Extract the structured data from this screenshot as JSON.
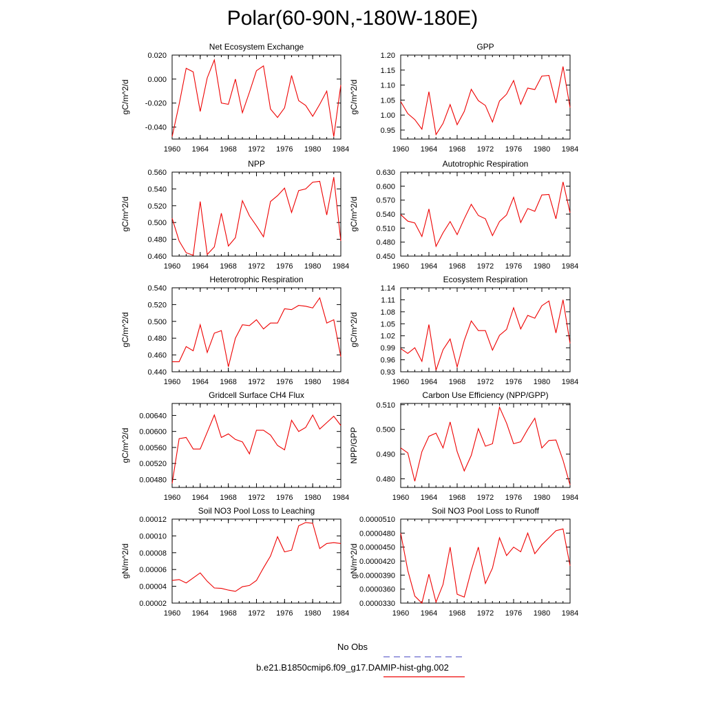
{
  "title": "Polar(60-90N,-180W-180E)",
  "legend": {
    "obs_label": "No Obs",
    "obs_color": "#6666cc",
    "model_label": "b.e21.B1850cmip6.f09_g17.DAMIP-hist-ghg.002",
    "model_color": "#ee0000"
  },
  "chart_data": [
    {
      "type": "line",
      "title": "Net Ecosystem Exchange",
      "ylabel": "gC/m^2/d",
      "xlim": [
        1960,
        1984
      ],
      "x_ticks": [
        "1960",
        "1964",
        "1968",
        "1972",
        "1976",
        "1980",
        "1984"
      ],
      "ylim": [
        -0.05,
        0.02
      ],
      "y_ticks": [
        "-0.040",
        "-0.020",
        "0.000",
        "0.020"
      ],
      "series": [
        {
          "color": "#ee0000",
          "x": [
            1960,
            1961,
            1962,
            1963,
            1964,
            1965,
            1966,
            1967,
            1968,
            1969,
            1970,
            1971,
            1972,
            1973,
            1974,
            1975,
            1976,
            1977,
            1978,
            1979,
            1980,
            1981,
            1982,
            1983,
            1984
          ],
          "values": [
            -0.048,
            -0.021,
            0.009,
            0.006,
            -0.027,
            0.001,
            0.016,
            -0.02,
            -0.021,
            0.0,
            -0.028,
            -0.011,
            0.007,
            0.011,
            -0.025,
            -0.032,
            -0.024,
            0.003,
            -0.018,
            -0.022,
            -0.031,
            -0.021,
            -0.01,
            -0.048,
            -0.005
          ]
        }
      ]
    },
    {
      "type": "line",
      "title": "GPP",
      "ylabel": "gC/m^2/d",
      "xlim": [
        1960,
        1984
      ],
      "x_ticks": [
        "1960",
        "1964",
        "1968",
        "1972",
        "1976",
        "1980",
        "1984"
      ],
      "ylim": [
        0.92,
        1.2
      ],
      "y_ticks": [
        "0.95",
        "1.00",
        "1.05",
        "1.10",
        "1.15",
        "1.20"
      ],
      "series": [
        {
          "color": "#ee0000",
          "x": [
            1960,
            1961,
            1962,
            1963,
            1964,
            1965,
            1966,
            1967,
            1968,
            1969,
            1970,
            1971,
            1972,
            1973,
            1974,
            1975,
            1976,
            1977,
            1978,
            1979,
            1980,
            1981,
            1982,
            1983,
            1984
          ],
          "values": [
            1.045,
            1.005,
            0.985,
            0.953,
            1.078,
            0.935,
            0.972,
            1.035,
            0.968,
            1.012,
            1.086,
            1.048,
            1.032,
            0.977,
            1.047,
            1.07,
            1.115,
            1.036,
            1.09,
            1.085,
            1.13,
            1.132,
            1.04,
            1.162,
            1.025
          ]
        }
      ]
    },
    {
      "type": "line",
      "title": "NPP",
      "ylabel": "gC/m^2/d",
      "xlim": [
        1960,
        1984
      ],
      "x_ticks": [
        "1960",
        "1964",
        "1968",
        "1972",
        "1976",
        "1980",
        "1984"
      ],
      "ylim": [
        0.46,
        0.56
      ],
      "y_ticks": [
        "0.460",
        "0.480",
        "0.500",
        "0.520",
        "0.540",
        "0.560"
      ],
      "series": [
        {
          "color": "#ee0000",
          "x": [
            1960,
            1961,
            1962,
            1963,
            1964,
            1965,
            1966,
            1967,
            1968,
            1969,
            1970,
            1971,
            1972,
            1973,
            1974,
            1975,
            1976,
            1977,
            1978,
            1979,
            1980,
            1981,
            1982,
            1983,
            1984
          ],
          "values": [
            0.505,
            0.478,
            0.464,
            0.461,
            0.525,
            0.462,
            0.471,
            0.511,
            0.472,
            0.482,
            0.526,
            0.508,
            0.496,
            0.483,
            0.525,
            0.532,
            0.541,
            0.512,
            0.538,
            0.54,
            0.548,
            0.549,
            0.509,
            0.554,
            0.478
          ]
        }
      ]
    },
    {
      "type": "line",
      "title": "Autotrophic Respiration",
      "ylabel": "gC/m^2/d",
      "xlim": [
        1960,
        1984
      ],
      "x_ticks": [
        "1960",
        "1964",
        "1968",
        "1972",
        "1976",
        "1980",
        "1984"
      ],
      "ylim": [
        0.45,
        0.63
      ],
      "y_ticks": [
        "0.450",
        "0.480",
        "0.510",
        "0.540",
        "0.570",
        "0.600",
        "0.630"
      ],
      "series": [
        {
          "color": "#ee0000",
          "x": [
            1960,
            1961,
            1962,
            1963,
            1964,
            1965,
            1966,
            1967,
            1968,
            1969,
            1970,
            1971,
            1972,
            1973,
            1974,
            1975,
            1976,
            1977,
            1978,
            1979,
            1980,
            1981,
            1982,
            1983,
            1984
          ],
          "values": [
            0.539,
            0.525,
            0.521,
            0.492,
            0.551,
            0.471,
            0.5,
            0.524,
            0.496,
            0.53,
            0.561,
            0.537,
            0.53,
            0.494,
            0.524,
            0.538,
            0.576,
            0.522,
            0.552,
            0.546,
            0.581,
            0.582,
            0.53,
            0.609,
            0.543
          ]
        }
      ]
    },
    {
      "type": "line",
      "title": "Heterotrophic Respiration",
      "ylabel": "gC/m^2/d",
      "xlim": [
        1960,
        1984
      ],
      "x_ticks": [
        "1960",
        "1964",
        "1968",
        "1972",
        "1976",
        "1980",
        "1984"
      ],
      "ylim": [
        0.44,
        0.54
      ],
      "y_ticks": [
        "0.440",
        "0.460",
        "0.480",
        "0.500",
        "0.520",
        "0.540"
      ],
      "series": [
        {
          "color": "#ee0000",
          "x": [
            1960,
            1961,
            1962,
            1963,
            1964,
            1965,
            1966,
            1967,
            1968,
            1969,
            1970,
            1971,
            1972,
            1973,
            1974,
            1975,
            1976,
            1977,
            1978,
            1979,
            1980,
            1981,
            1982,
            1983,
            1984
          ],
          "values": [
            0.452,
            0.452,
            0.47,
            0.465,
            0.496,
            0.463,
            0.486,
            0.489,
            0.446,
            0.48,
            0.496,
            0.495,
            0.502,
            0.491,
            0.498,
            0.498,
            0.515,
            0.514,
            0.519,
            0.518,
            0.516,
            0.528,
            0.498,
            0.502,
            0.458
          ]
        }
      ]
    },
    {
      "type": "line",
      "title": "Ecosystem Respiration",
      "ylabel": "gC/m^2/d",
      "xlim": [
        1960,
        1984
      ],
      "x_ticks": [
        "1960",
        "1964",
        "1968",
        "1972",
        "1976",
        "1980",
        "1984"
      ],
      "ylim": [
        0.93,
        1.14
      ],
      "y_ticks": [
        "0.93",
        "0.96",
        "0.99",
        "1.02",
        "1.05",
        "1.08",
        "1.11",
        "1.14"
      ],
      "series": [
        {
          "color": "#ee0000",
          "x": [
            1960,
            1961,
            1962,
            1963,
            1964,
            1965,
            1966,
            1967,
            1968,
            1969,
            1970,
            1971,
            1972,
            1973,
            1974,
            1975,
            1976,
            1977,
            1978,
            1979,
            1980,
            1981,
            1982,
            1983,
            1984
          ],
          "values": [
            0.988,
            0.976,
            0.99,
            0.956,
            1.048,
            0.934,
            0.985,
            1.012,
            0.942,
            1.008,
            1.057,
            1.033,
            1.033,
            0.984,
            1.021,
            1.036,
            1.09,
            1.037,
            1.071,
            1.064,
            1.095,
            1.107,
            1.027,
            1.11,
            1.001
          ]
        }
      ]
    },
    {
      "type": "line",
      "title": "Gridcell Surface CH4 Flux",
      "ylabel": "gC/m^2/d",
      "xlim": [
        1960,
        1984
      ],
      "x_ticks": [
        "1960",
        "1964",
        "1968",
        "1972",
        "1976",
        "1980",
        "1984"
      ],
      "ylim": [
        0.0046,
        0.0067
      ],
      "y_ticks": [
        "0.00480",
        "0.00520",
        "0.00560",
        "0.00600",
        "0.00640"
      ],
      "series": [
        {
          "color": "#ee0000",
          "x": [
            1960,
            1961,
            1962,
            1963,
            1964,
            1965,
            1966,
            1967,
            1968,
            1969,
            1970,
            1971,
            1972,
            1973,
            1974,
            1975,
            1976,
            1977,
            1978,
            1979,
            1980,
            1981,
            1982,
            1983,
            1984
          ],
          "values": [
            0.0047,
            0.00582,
            0.00585,
            0.00556,
            0.00556,
            0.00598,
            0.00641,
            0.00585,
            0.00594,
            0.0058,
            0.00574,
            0.00544,
            0.00603,
            0.00603,
            0.00591,
            0.00565,
            0.00554,
            0.00628,
            0.006,
            0.0061,
            0.00641,
            0.00606,
            0.00622,
            0.00638,
            0.00615
          ]
        }
      ]
    },
    {
      "type": "line",
      "title": "Carbon Use Efficiency (NPP/GPP)",
      "ylabel": "NPP/GPP",
      "xlim": [
        1960,
        1984
      ],
      "x_ticks": [
        "1960",
        "1964",
        "1968",
        "1972",
        "1976",
        "1980",
        "1984"
      ],
      "ylim": [
        0.4765,
        0.5105
      ],
      "y_ticks": [
        "0.480",
        "0.490",
        "0.500",
        "0.510"
      ],
      "series": [
        {
          "color": "#ee0000",
          "x": [
            1960,
            1961,
            1962,
            1963,
            1964,
            1965,
            1966,
            1967,
            1968,
            1969,
            1970,
            1971,
            1972,
            1973,
            1974,
            1975,
            1976,
            1977,
            1978,
            1979,
            1980,
            1981,
            1982,
            1983,
            1984
          ],
          "values": [
            0.4925,
            0.4905,
            0.479,
            0.491,
            0.4972,
            0.4985,
            0.4925,
            0.503,
            0.491,
            0.4832,
            0.4895,
            0.5003,
            0.4932,
            0.4942,
            0.509,
            0.5025,
            0.4942,
            0.495,
            0.5,
            0.5045,
            0.4925,
            0.4955,
            0.4957,
            0.4875,
            0.4775
          ]
        }
      ]
    },
    {
      "type": "line",
      "title": "Soil NO3 Pool Loss to Leaching",
      "ylabel": "gN/m^2/d",
      "xlim": [
        1960,
        1984
      ],
      "x_ticks": [
        "1960",
        "1964",
        "1968",
        "1972",
        "1976",
        "1980",
        "1984"
      ],
      "ylim": [
        2e-05,
        0.00012
      ],
      "y_ticks": [
        "0.00002",
        "0.00004",
        "0.00006",
        "0.00008",
        "0.00010",
        "0.00012"
      ],
      "series": [
        {
          "color": "#ee0000",
          "x": [
            1960,
            1961,
            1962,
            1963,
            1964,
            1965,
            1966,
            1967,
            1968,
            1969,
            1970,
            1971,
            1972,
            1973,
            1974,
            1975,
            1976,
            1977,
            1978,
            1979,
            1980,
            1981,
            1982,
            1983,
            1984
          ],
          "values": [
            4.7e-05,
            4.8e-05,
            4.4e-05,
            5e-05,
            5.6e-05,
            4.6e-05,
            3.8e-05,
            3.75e-05,
            3.55e-05,
            3.4e-05,
            3.95e-05,
            4.1e-05,
            4.7e-05,
            6.2e-05,
            7.6e-05,
            9.9e-05,
            8.1e-05,
            8.3e-05,
            0.000112,
            0.000116,
            0.000115,
            8.5e-05,
            9.1e-05,
            9.2e-05,
            9.1e-05
          ]
        }
      ]
    },
    {
      "type": "line",
      "title": "Soil NO3 Pool Loss to Runoff",
      "ylabel": "gN/m^2/d",
      "xlim": [
        1960,
        1984
      ],
      "x_ticks": [
        "1960",
        "1964",
        "1968",
        "1972",
        "1976",
        "1980",
        "1984"
      ],
      "ylim": [
        3.3e-05,
        5.1e-05
      ],
      "y_ticks": [
        "0.0000330",
        "0.0000360",
        "0.0000390",
        "0.0000420",
        "0.0000450",
        "0.0000480",
        "0.0000510"
      ],
      "series": [
        {
          "color": "#ee0000",
          "x": [
            1960,
            1961,
            1962,
            1963,
            1964,
            1965,
            1966,
            1967,
            1968,
            1969,
            1970,
            1971,
            1972,
            1973,
            1974,
            1975,
            1976,
            1977,
            1978,
            1979,
            1980,
            1981,
            1982,
            1983,
            1984
          ],
          "values": [
            4.8e-05,
            4e-05,
            3.45e-05,
            3.3e-05,
            3.92e-05,
            3.32e-05,
            3.7e-05,
            4.5e-05,
            3.49e-05,
            3.43e-05,
            4e-05,
            4.5e-05,
            3.72e-05,
            4.05e-05,
            4.7e-05,
            4.32e-05,
            4.5e-05,
            4.4e-05,
            4.8e-05,
            4.36e-05,
            4.55e-05,
            4.7e-05,
            4.85e-05,
            4.89e-05,
            4.1e-05
          ]
        }
      ]
    }
  ]
}
